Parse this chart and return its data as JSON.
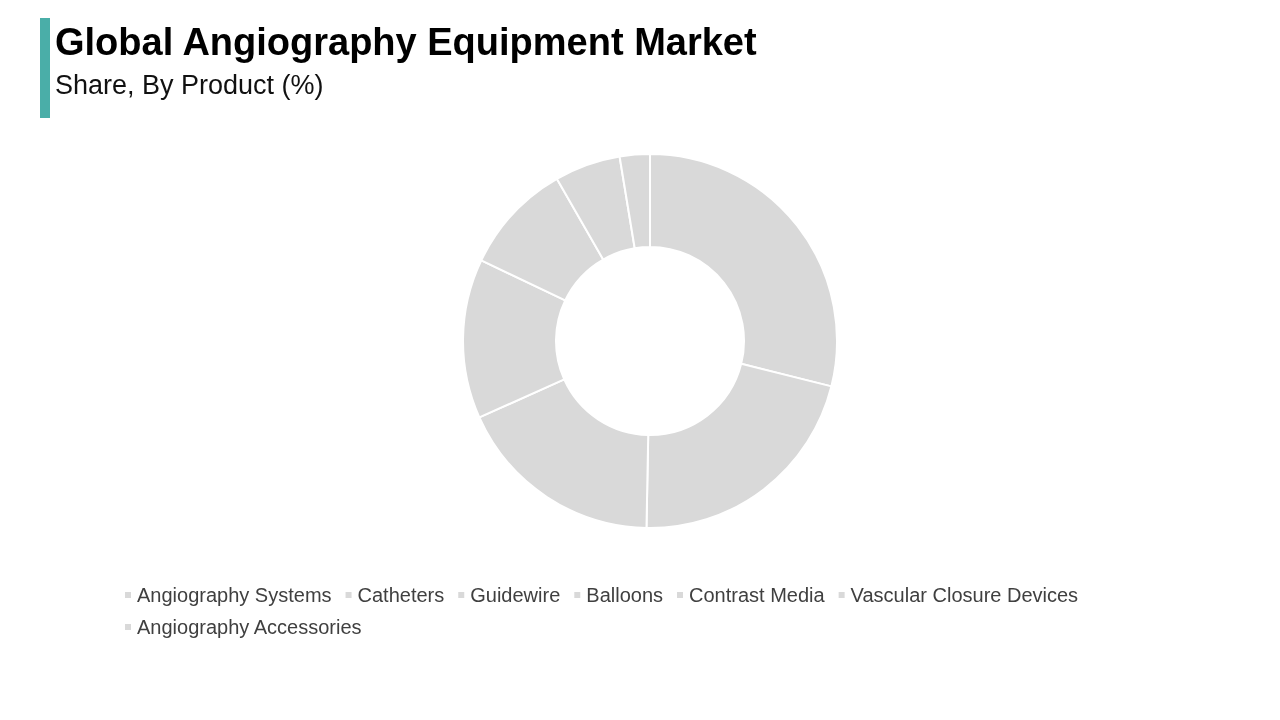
{
  "chart_data": {
    "type": "donut",
    "title": "Global Angiography Equipment Market",
    "subtitle": "Share, By Product (%)",
    "categories": [
      "Angiography Systems",
      "Catheters",
      "Guidewire",
      "Balloons",
      "Contrast Media",
      "Vascular Closure Devices",
      "Angiography Accessories"
    ],
    "values": [
      28.9,
      21.4,
      18,
      13.8,
      9.6,
      5.7,
      2.6
    ],
    "colors": [
      "#d9d9d9",
      "#d9d9d9",
      "#d9d9d9",
      "#d9d9d9",
      "#d9d9d9",
      "#d9d9d9",
      "#d9d9d9"
    ],
    "legend": "bottom"
  }
}
